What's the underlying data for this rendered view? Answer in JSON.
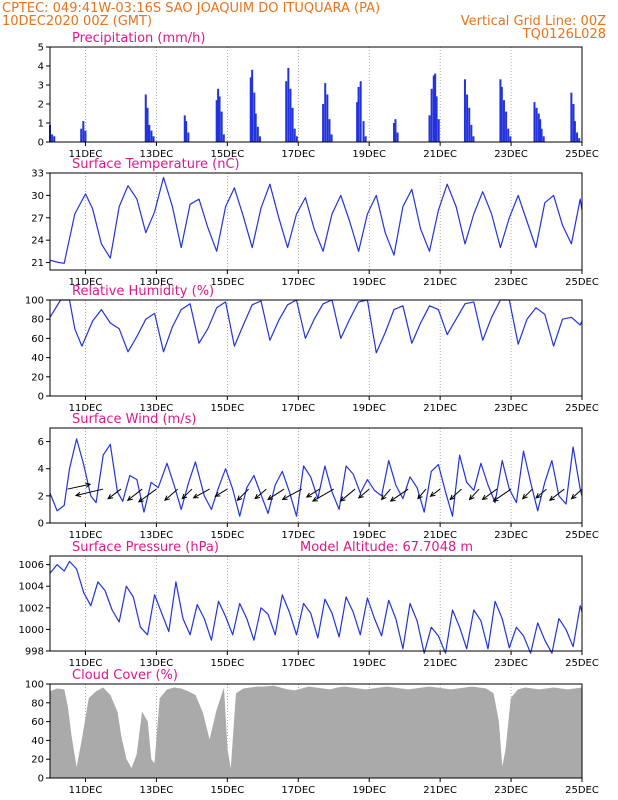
{
  "header": {
    "line1_left": "CPTEC:   049:41W-03:16S  SAO JOAQUIM DO ITUQUARA (PA)",
    "line2_left": "10DEC2020 00Z (GMT)",
    "line2_right": "Vertical Grid Line: 00Z",
    "line3_right": "TQ0126L028"
  },
  "colors": {
    "header": "#e8731a",
    "title": "#e0188c",
    "series": "#2233dd",
    "cloud": "#aaaaaa",
    "wind_arrow": "#000000",
    "grid": "#777777"
  },
  "x_axis": {
    "tick_labels": [
      "11DEC",
      "13DEC",
      "15DEC",
      "17DEC",
      "19DEC",
      "21DEC",
      "23DEC",
      "25DEC"
    ],
    "tick_days": [
      11,
      13,
      15,
      17,
      19,
      21,
      23,
      25
    ],
    "range_days": [
      10,
      25
    ]
  },
  "chart_data": [
    {
      "type": "bar",
      "title": "Precipitation (mm/h)",
      "ylim": [
        0,
        5
      ],
      "yticks": [
        "0",
        "1",
        "2",
        "3",
        "4",
        "5"
      ],
      "ytick_values": [
        0,
        1,
        2,
        3,
        4,
        5
      ],
      "x_days": [
        10.0,
        10.06,
        10.12,
        10.88,
        10.94,
        11.0,
        12.7,
        12.75,
        12.8,
        12.86,
        12.92,
        13.8,
        13.84,
        13.9,
        14.7,
        14.74,
        14.78,
        14.84,
        14.9,
        15.66,
        15.7,
        15.76,
        15.8,
        15.86,
        15.92,
        16.66,
        16.72,
        16.78,
        16.84,
        16.9,
        16.96,
        17.7,
        17.76,
        17.82,
        17.88,
        17.94,
        18.66,
        18.7,
        18.76,
        18.84,
        18.9,
        19.7,
        19.74,
        19.8,
        20.7,
        20.76,
        20.82,
        20.86,
        20.9,
        20.96,
        21.7,
        21.76,
        21.82,
        21.88,
        21.94,
        22.7,
        22.74,
        22.8,
        22.86,
        22.92,
        22.98,
        23.66,
        23.72,
        23.78,
        23.82,
        23.86,
        23.92,
        24.7,
        24.76,
        24.8,
        24.86,
        24.92
      ],
      "values": [
        0.9,
        0.4,
        0.3,
        0.7,
        1.1,
        0.6,
        2.5,
        1.8,
        0.9,
        0.6,
        0.3,
        1.4,
        1.1,
        0.5,
        2.2,
        2.8,
        2.4,
        1.6,
        0.4,
        3.4,
        3.8,
        2.6,
        1.5,
        0.8,
        0.3,
        3.2,
        3.9,
        2.8,
        1.8,
        0.7,
        0.3,
        2.0,
        3.1,
        2.5,
        1.2,
        0.4,
        2.1,
        2.9,
        3.2,
        1.1,
        0.3,
        1.0,
        1.2,
        0.5,
        1.4,
        2.8,
        3.5,
        3.6,
        2.4,
        1.2,
        3.3,
        2.5,
        1.8,
        0.9,
        0.3,
        3.3,
        2.9,
        2.2,
        1.6,
        0.7,
        0.3,
        2.1,
        1.8,
        1.5,
        1.2,
        0.7,
        0.3,
        2.6,
        2.0,
        1.1,
        0.5,
        0.2
      ]
    },
    {
      "type": "line",
      "title": "Surface Temperature (nC)",
      "ylim": [
        20,
        33
      ],
      "yticks": [
        "21",
        "24",
        "27",
        "30",
        "33"
      ],
      "ytick_values": [
        21,
        24,
        27,
        30,
        33
      ],
      "x_days": [
        10.0,
        10.25,
        10.4,
        10.7,
        11.0,
        11.2,
        11.45,
        11.7,
        11.95,
        12.2,
        12.45,
        12.7,
        12.95,
        13.2,
        13.45,
        13.7,
        13.95,
        14.2,
        14.45,
        14.7,
        14.95,
        15.2,
        15.45,
        15.7,
        15.95,
        16.2,
        16.45,
        16.7,
        16.95,
        17.2,
        17.45,
        17.7,
        17.95,
        18.2,
        18.45,
        18.7,
        18.95,
        19.2,
        19.45,
        19.7,
        19.95,
        20.2,
        20.45,
        20.7,
        20.95,
        21.2,
        21.45,
        21.7,
        21.95,
        22.2,
        22.45,
        22.7,
        22.95,
        23.2,
        23.45,
        23.7,
        23.95,
        24.2,
        24.45,
        24.7,
        24.95,
        25.0
      ],
      "values": [
        21.3,
        21.0,
        20.9,
        27.5,
        30.2,
        28.2,
        23.5,
        21.6,
        28.5,
        31.3,
        29.5,
        25.0,
        27.8,
        32.4,
        28.5,
        23.0,
        28.8,
        29.5,
        25.7,
        22.5,
        28.5,
        31.0,
        27.2,
        23.0,
        28.3,
        31.5,
        27.0,
        23.0,
        27.5,
        29.7,
        25.5,
        22.5,
        27.5,
        30.0,
        26.5,
        22.5,
        27.5,
        30.0,
        25.0,
        22.0,
        28.5,
        30.8,
        25.5,
        22.5,
        28.0,
        31.5,
        28.5,
        23.5,
        27.5,
        30.5,
        27.5,
        23.0,
        27.0,
        30.0,
        26.5,
        23.0,
        29.0,
        30.0,
        26.0,
        23.5,
        29.5,
        28.0
      ]
    },
    {
      "type": "line",
      "title": "Relative Humidity (%)",
      "ylim": [
        0,
        100
      ],
      "yticks": [
        "0",
        "20",
        "40",
        "60",
        "80",
        "100"
      ],
      "ytick_values": [
        0,
        20,
        40,
        60,
        80,
        100
      ],
      "x_days": [
        10.0,
        10.3,
        10.55,
        10.7,
        10.9,
        11.2,
        11.45,
        11.7,
        11.95,
        12.2,
        12.45,
        12.7,
        12.95,
        13.2,
        13.45,
        13.7,
        13.95,
        14.2,
        14.45,
        14.7,
        14.95,
        15.2,
        15.45,
        15.7,
        15.95,
        16.2,
        16.45,
        16.7,
        16.95,
        17.2,
        17.45,
        17.7,
        17.95,
        18.2,
        18.45,
        18.7,
        18.95,
        19.2,
        19.45,
        19.7,
        19.95,
        20.2,
        20.45,
        20.7,
        20.95,
        21.2,
        21.45,
        21.7,
        21.95,
        22.2,
        22.45,
        22.7,
        22.95,
        23.2,
        23.45,
        23.7,
        23.95,
        24.2,
        24.45,
        24.7,
        24.95,
        25.0
      ],
      "values": [
        82,
        100,
        100,
        70,
        52,
        78,
        90,
        76,
        70,
        46,
        62,
        80,
        86,
        46,
        72,
        90,
        96,
        55,
        70,
        92,
        98,
        52,
        74,
        95,
        99,
        58,
        79,
        95,
        100,
        60,
        80,
        96,
        100,
        60,
        80,
        98,
        100,
        45,
        66,
        90,
        94,
        55,
        76,
        94,
        90,
        64,
        80,
        96,
        98,
        58,
        82,
        100,
        100,
        54,
        80,
        92,
        85,
        52,
        80,
        82,
        74,
        78
      ]
    },
    {
      "type": "line",
      "title": "Surface Wind (m/s)",
      "ylim": [
        0,
        7
      ],
      "yticks": [
        "0",
        "2",
        "4",
        "6"
      ],
      "ytick_values": [
        0,
        2,
        4,
        6
      ],
      "x_days": [
        10.0,
        10.2,
        10.4,
        10.55,
        10.75,
        10.95,
        11.15,
        11.3,
        11.5,
        11.7,
        11.9,
        12.05,
        12.25,
        12.45,
        12.65,
        12.85,
        13.05,
        13.3,
        13.5,
        13.7,
        13.9,
        14.1,
        14.35,
        14.55,
        14.75,
        14.95,
        15.15,
        15.35,
        15.55,
        15.75,
        15.95,
        16.15,
        16.35,
        16.55,
        16.75,
        16.95,
        17.15,
        17.35,
        17.55,
        17.75,
        17.95,
        18.15,
        18.35,
        18.55,
        18.75,
        18.95,
        19.15,
        19.35,
        19.55,
        19.75,
        19.95,
        20.15,
        20.35,
        20.55,
        20.75,
        20.95,
        21.15,
        21.35,
        21.55,
        21.75,
        21.95,
        22.15,
        22.35,
        22.55,
        22.75,
        22.95,
        23.15,
        23.35,
        23.55,
        23.75,
        23.95,
        24.15,
        24.35,
        24.55,
        24.75,
        24.95,
        25.0
      ],
      "values": [
        2.2,
        0.9,
        1.3,
        4.0,
        6.2,
        4.3,
        2.0,
        1.5,
        5.0,
        5.8,
        2.3,
        1.6,
        3.5,
        3.2,
        0.8,
        3.0,
        2.6,
        4.4,
        2.8,
        1.0,
        2.9,
        4.5,
        2.0,
        1.0,
        2.6,
        4.0,
        2.5,
        0.5,
        2.6,
        3.5,
        2.1,
        0.7,
        2.8,
        3.8,
        2.3,
        0.5,
        4.2,
        3.4,
        1.8,
        4.2,
        2.3,
        1.0,
        4.2,
        3.6,
        2.2,
        3.2,
        2.4,
        2.0,
        4.6,
        2.8,
        1.8,
        3.4,
        2.6,
        0.8,
        3.8,
        4.3,
        2.3,
        0.5,
        5.0,
        3.0,
        2.4,
        4.4,
        2.8,
        1.5,
        4.6,
        2.5,
        1.5,
        5.3,
        3.0,
        0.9,
        3.0,
        4.6,
        2.0,
        1.4,
        5.6,
        2.5,
        2.0
      ],
      "vector_days": [
        10.5,
        11.5,
        12.0,
        12.6,
        13.0,
        13.6,
        14.0,
        14.5,
        15.0,
        15.6,
        16.1,
        16.6,
        17.1,
        17.6,
        18.0,
        18.6,
        19.0,
        19.6,
        20.1,
        20.6,
        21.0,
        21.6,
        22.1,
        22.6,
        23.0,
        23.6,
        24.0,
        24.5,
        25.0
      ],
      "vector_u": [
        2.8,
        -3.4,
        -1.6,
        -1.8,
        -2.2,
        -1.6,
        -1.2,
        -2.0,
        -1.5,
        -1.4,
        -1.4,
        -2.0,
        -2.4,
        -1.6,
        -2.6,
        -1.8,
        -1.3,
        -1.1,
        -2.2,
        -1.0,
        -1.2,
        -1.4,
        -1.2,
        -1.8,
        -2.2,
        -1.2,
        -1.3,
        -1.8,
        -1.3
      ],
      "vector_v": [
        0.6,
        -0.8,
        -1.2,
        -1.4,
        -1.6,
        -1.4,
        -1.2,
        -1.1,
        -0.9,
        -1.4,
        -1.2,
        -1.3,
        -1.3,
        -1.0,
        -1.5,
        -1.5,
        -1.1,
        -1.3,
        -1.5,
        -1.2,
        -0.9,
        -1.3,
        -1.3,
        -1.3,
        -1.5,
        -1.2,
        -1.1,
        -1.4,
        -1.2
      ]
    },
    {
      "type": "line",
      "title": "Surface Pressure (hPa)",
      "annotation": "Model Altitude: 67.7048 m",
      "ylim": [
        998,
        1006.8
      ],
      "yticks": [
        "998",
        "1000",
        "1002",
        "1004",
        "1006"
      ],
      "ytick_values": [
        998,
        1000,
        1002,
        1004,
        1006
      ],
      "x_days": [
        10.0,
        10.2,
        10.4,
        10.55,
        10.75,
        10.95,
        11.15,
        11.35,
        11.55,
        11.75,
        11.95,
        12.15,
        12.35,
        12.55,
        12.75,
        12.95,
        13.15,
        13.35,
        13.55,
        13.75,
        13.95,
        14.15,
        14.35,
        14.55,
        14.75,
        14.95,
        15.15,
        15.35,
        15.55,
        15.75,
        15.95,
        16.15,
        16.35,
        16.55,
        16.75,
        16.95,
        17.15,
        17.35,
        17.55,
        17.75,
        17.95,
        18.15,
        18.35,
        18.55,
        18.75,
        18.95,
        19.15,
        19.35,
        19.55,
        19.75,
        19.95,
        20.15,
        20.35,
        20.55,
        20.75,
        20.95,
        21.15,
        21.35,
        21.55,
        21.75,
        21.95,
        22.15,
        22.35,
        22.55,
        22.75,
        22.95,
        23.15,
        23.35,
        23.55,
        23.75,
        23.95,
        24.15,
        24.35,
        24.55,
        24.75,
        24.95,
        25.0
      ],
      "values": [
        1005.2,
        1006.0,
        1005.4,
        1006.3,
        1005.6,
        1003.4,
        1002.2,
        1004.4,
        1003.6,
        1001.8,
        1000.7,
        1004.0,
        1003.0,
        1000.2,
        999.5,
        1003.2,
        1001.5,
        999.8,
        1004.4,
        1001.0,
        999.5,
        1002.3,
        1001.0,
        999.0,
        1002.6,
        1001.2,
        999.5,
        1002.4,
        1001.0,
        999.0,
        1002.0,
        1001.4,
        999.5,
        1003.2,
        1001.6,
        999.5,
        1002.4,
        1001.5,
        999.2,
        1002.8,
        1001.5,
        999.3,
        1003.0,
        1001.6,
        999.5,
        1002.9,
        1001.0,
        999.4,
        1002.7,
        1001.0,
        998.2,
        1002.4,
        1000.8,
        997.8,
        1000.2,
        999.4,
        997.8,
        1001.8,
        1000.2,
        998.2,
        1001.8,
        1000.8,
        998.2,
        1002.6,
        1001.0,
        998.3,
        1000.2,
        999.4,
        997.8,
        1000.6,
        999.0,
        997.8,
        1001.0,
        1000.0,
        998.4,
        1002.2,
        1001.6
      ]
    },
    {
      "type": "area",
      "title": "Cloud Cover (%)",
      "ylim": [
        0,
        100
      ],
      "yticks": [
        "0",
        "20",
        "40",
        "60",
        "80",
        "100"
      ],
      "ytick_values": [
        0,
        20,
        40,
        60,
        80,
        100
      ],
      "x_days": [
        10.0,
        10.2,
        10.4,
        10.5,
        10.6,
        10.75,
        10.9,
        11.1,
        11.3,
        11.5,
        11.7,
        11.9,
        12.0,
        12.15,
        12.3,
        12.45,
        12.6,
        12.75,
        12.85,
        12.95,
        13.1,
        13.3,
        13.5,
        13.7,
        13.9,
        14.1,
        14.3,
        14.5,
        14.7,
        14.9,
        15.0,
        15.1,
        15.25,
        15.45,
        15.65,
        15.85,
        16.05,
        16.3,
        16.5,
        16.7,
        16.9,
        17.1,
        17.3,
        17.5,
        17.7,
        17.9,
        18.1,
        18.3,
        18.5,
        18.7,
        18.9,
        19.1,
        19.3,
        19.5,
        19.7,
        19.9,
        20.1,
        20.3,
        20.5,
        20.7,
        20.9,
        21.1,
        21.3,
        21.5,
        21.7,
        21.9,
        22.1,
        22.3,
        22.5,
        22.65,
        22.75,
        22.85,
        23.0,
        23.2,
        23.4,
        23.6,
        23.8,
        24.0,
        24.2,
        24.4,
        24.6,
        24.8,
        25.0
      ],
      "values": [
        92,
        95,
        94,
        75,
        45,
        10,
        40,
        85,
        92,
        96,
        88,
        70,
        45,
        20,
        10,
        25,
        70,
        60,
        20,
        15,
        85,
        94,
        96,
        95,
        92,
        88,
        70,
        40,
        72,
        95,
        30,
        8,
        90,
        95,
        96,
        97,
        97,
        98,
        96,
        94,
        93,
        95,
        97,
        96,
        95,
        94,
        96,
        97,
        96,
        95,
        94,
        95,
        96,
        97,
        96,
        95,
        94,
        95,
        96,
        97,
        96,
        95,
        94,
        95,
        96,
        97,
        96,
        95,
        90,
        60,
        10,
        30,
        85,
        94,
        96,
        95,
        94,
        95,
        96,
        95,
        94,
        95,
        96
      ]
    }
  ]
}
